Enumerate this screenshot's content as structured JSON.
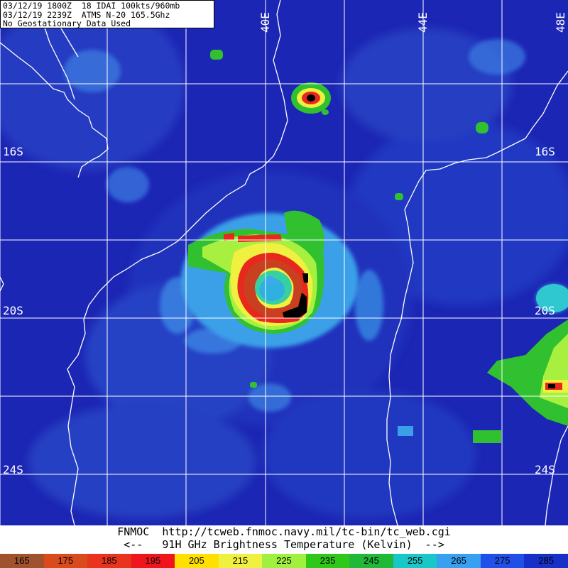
{
  "header": {
    "line1": "03/12/19 1800Z  18 IDAI 100kts/960mb",
    "line2": "03/12/19 2239Z  ATMS N-20 165.5Ghz",
    "line3": "No Geostationary Data Used"
  },
  "grid_labels": {
    "lon_40e": "40E",
    "lon_44e": "44E",
    "lon_48e": "48E",
    "lat_16s_left": "16S",
    "lat_16s_right": "16S",
    "lat_20s_left": "20S",
    "lat_20s_right": "20S",
    "lat_24s_left": "24S",
    "lat_24s_right": "24S"
  },
  "footer": {
    "source": "FNMOC  http://tcweb.fnmoc.navy.mil/tc-bin/tc_web.cgi",
    "legend_title": "<--   91H GHz Brightness Temperature (Kelvin)  -->"
  },
  "colorbar": {
    "labels": [
      "165",
      "175",
      "185",
      "195",
      "205",
      "215",
      "225",
      "235",
      "245",
      "255",
      "265",
      "275",
      "285"
    ],
    "colors": [
      "#a0522d",
      "#d94a1c",
      "#e8341c",
      "#f0141c",
      "#ffe000",
      "#f0f040",
      "#a0f040",
      "#30c818",
      "#20b838",
      "#18c8c8",
      "#38a0f0",
      "#2050e8",
      "#1830c8"
    ]
  }
}
